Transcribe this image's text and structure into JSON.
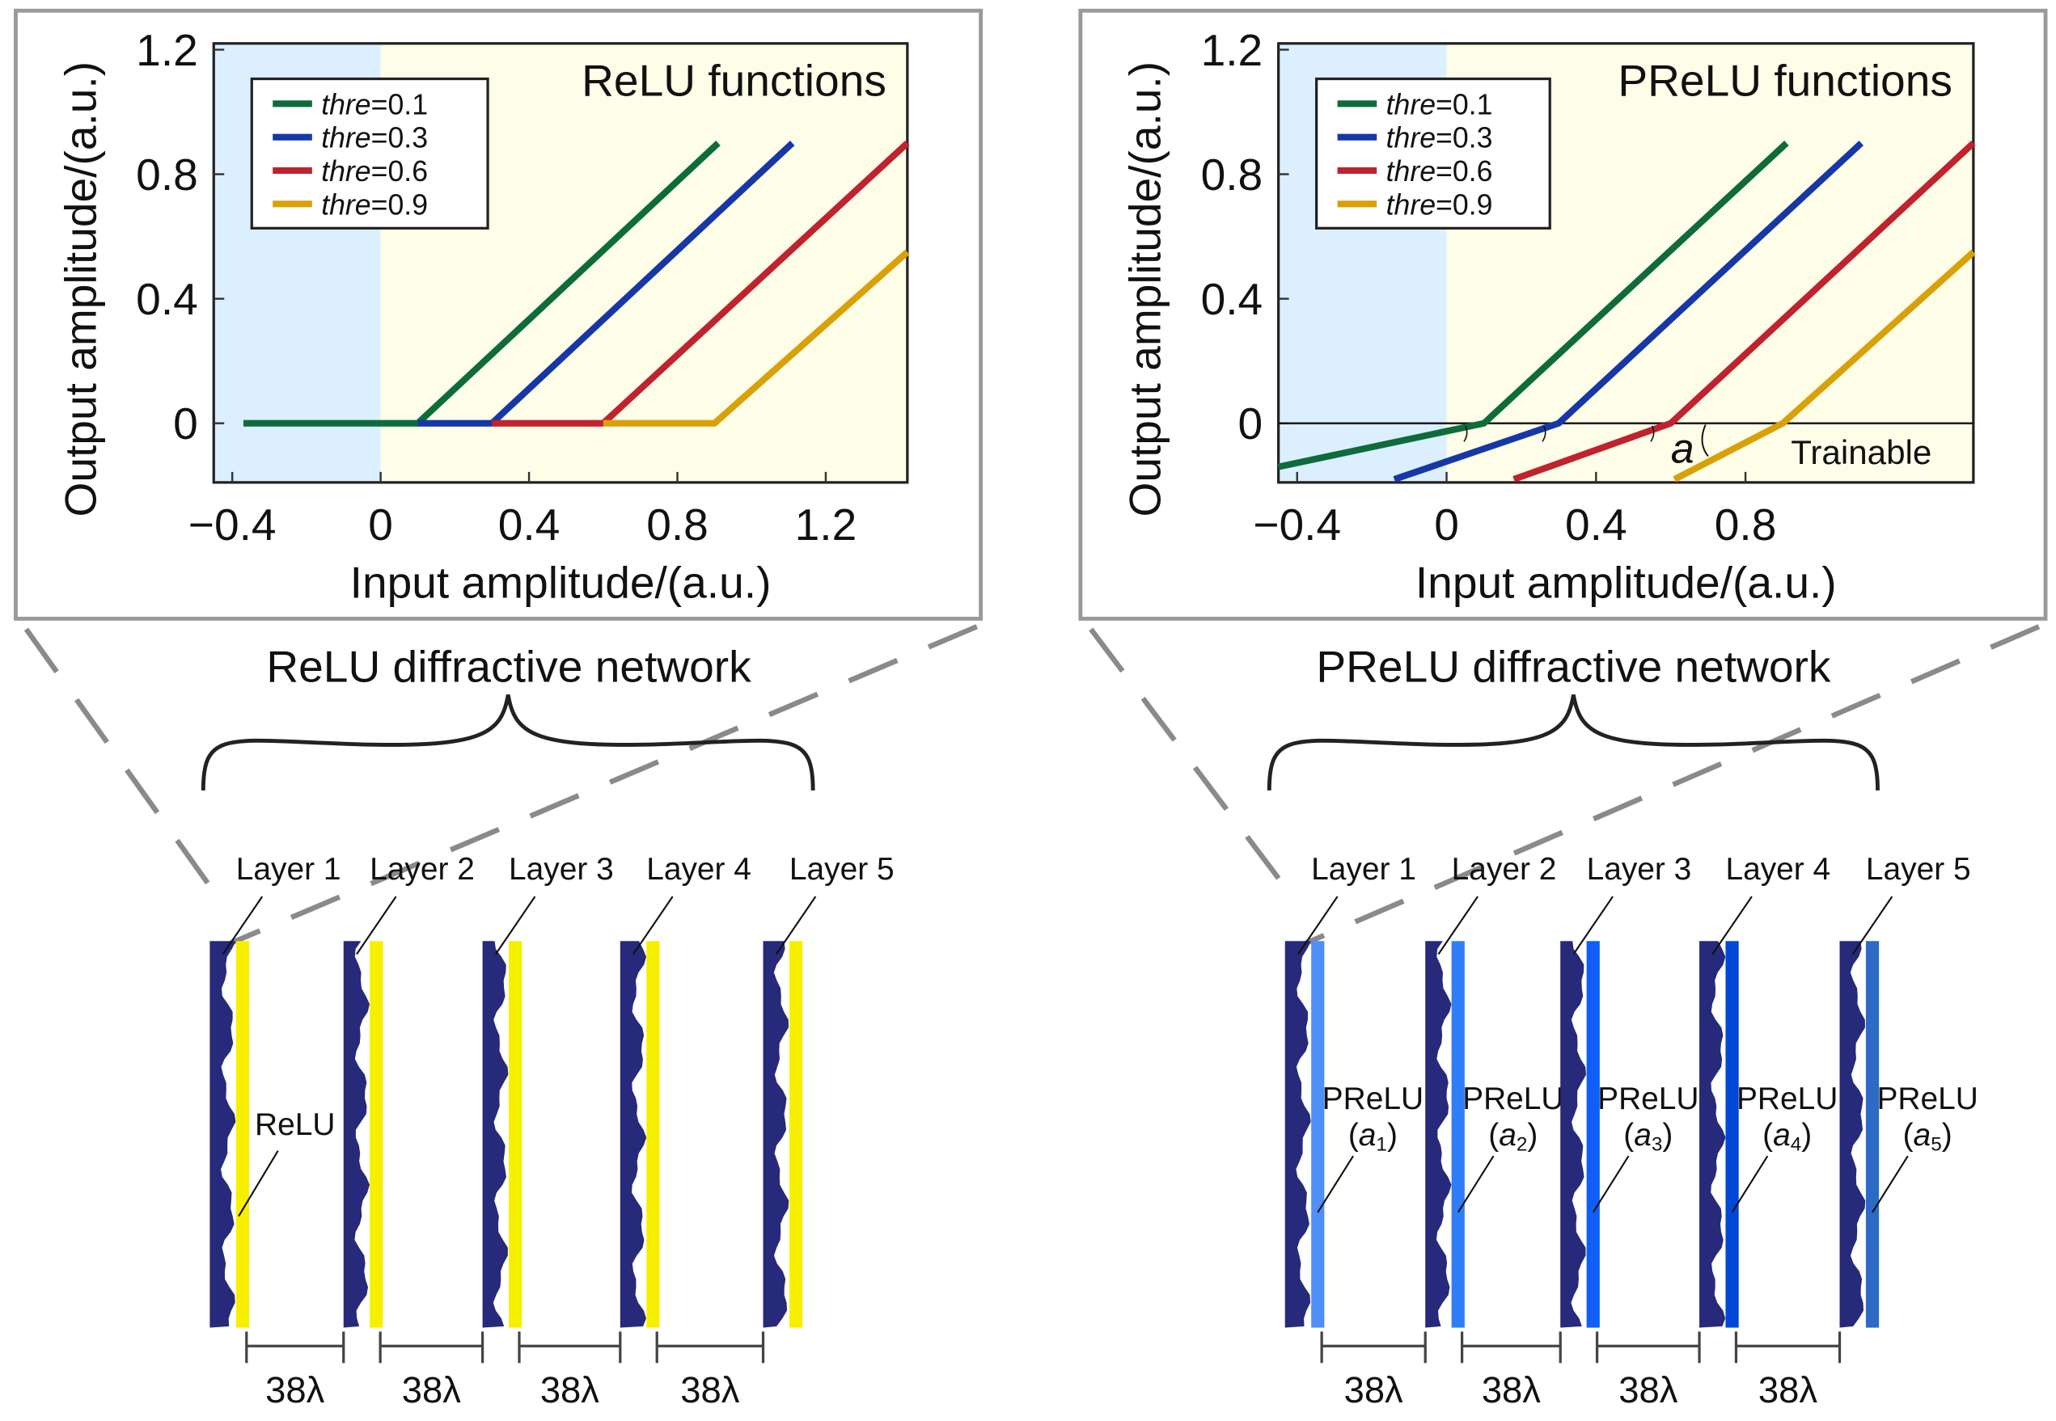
{
  "chart_data": [
    {
      "type": "line",
      "title": "ReLU functions",
      "xlabel": "Input amplitude/(a.u.)",
      "ylabel": "Output amplitude/(a.u.)",
      "xlim": [
        -0.45,
        1.42
      ],
      "ylim": [
        -0.19,
        1.22
      ],
      "xticks": [
        -0.4,
        0,
        0.4,
        0.8,
        1.2
      ],
      "xtick_labels": [
        "−0.4",
        "0",
        "0.4",
        "0.8",
        "1.2"
      ],
      "yticks": [
        0,
        0.4,
        0.8,
        1.2
      ],
      "ytick_labels": [
        "0",
        "0.4",
        "0.8",
        "1.2"
      ],
      "legend_position": "top-left",
      "shaded_regions": [
        {
          "from": -0.45,
          "to": 0,
          "color": "#dcefff"
        },
        {
          "from": 0,
          "to": 1.42,
          "color": "#fdfde8"
        }
      ],
      "series": [
        {
          "name": "thre=0.1",
          "prefix": "thre",
          "suffix": "=0.1",
          "color": "#0e6b3c",
          "x": [
            -0.37,
            0.1,
            0.91
          ],
          "y": [
            0,
            0,
            0.9
          ]
        },
        {
          "name": "thre=0.3",
          "prefix": "thre",
          "suffix": "=0.3",
          "color": "#1737a6",
          "x": [
            0.1,
            0.3,
            1.11
          ],
          "y": [
            0,
            0,
            0.9
          ]
        },
        {
          "name": "thre=0.6",
          "prefix": "thre",
          "suffix": "=0.6",
          "color": "#c0222e",
          "x": [
            0.3,
            0.6,
            1.42
          ],
          "y": [
            0,
            0,
            0.9
          ]
        },
        {
          "name": "thre=0.9",
          "prefix": "thre",
          "suffix": "=0.9",
          "color": "#d9a107",
          "x": [
            0.6,
            0.9,
            1.42
          ],
          "y": [
            0,
            0,
            0.55
          ]
        }
      ]
    },
    {
      "type": "line",
      "title": "PReLU functions",
      "xlabel": "Input amplitude/(a.u.)",
      "ylabel": "Output amplitude/(a.u.)",
      "xlim": [
        -0.45,
        1.41
      ],
      "ylim": [
        -0.19,
        1.22
      ],
      "xticks": [
        -0.4,
        0,
        0.4,
        0.8
      ],
      "xtick_labels": [
        "−0.4",
        "0",
        "0.4",
        "0.8"
      ],
      "yticks": [
        0,
        0.4,
        0.8,
        1.2
      ],
      "ytick_labels": [
        "0",
        "0.4",
        "0.8",
        "1.2"
      ],
      "legend_position": "top-left",
      "zero_line": true,
      "annotation": {
        "symbol": "a",
        "text": "Trainable"
      },
      "shaded_regions": [
        {
          "from": -0.45,
          "to": 0,
          "color": "#dcefff"
        },
        {
          "from": 0,
          "to": 1.41,
          "color": "#fdfde8"
        }
      ],
      "series": [
        {
          "name": "thre=0.1",
          "prefix": "thre",
          "suffix": "=0.1",
          "color": "#0e6b3c",
          "x": [
            -0.45,
            0.1,
            0.91
          ],
          "y": [
            -0.14,
            0,
            0.9
          ]
        },
        {
          "name": "thre=0.3",
          "prefix": "thre",
          "suffix": "=0.3",
          "color": "#1737a6",
          "x": [
            -0.14,
            0.3,
            1.11
          ],
          "y": [
            -0.18,
            0,
            0.9
          ]
        },
        {
          "name": "thre=0.6",
          "prefix": "thre",
          "suffix": "=0.6",
          "color": "#c0222e",
          "x": [
            0.18,
            0.6,
            1.41
          ],
          "y": [
            -0.18,
            0,
            0.9
          ]
        },
        {
          "name": "thre=0.9",
          "prefix": "thre",
          "suffix": "=0.9",
          "color": "#d9a107",
          "x": [
            0.61,
            0.9,
            1.41
          ],
          "y": [
            -0.18,
            0,
            0.55
          ]
        }
      ]
    }
  ],
  "networks": [
    {
      "title": "ReLU diffractive network",
      "layers": [
        "Layer 1",
        "Layer 2",
        "Layer 3",
        "Layer 4",
        "Layer 5"
      ],
      "activation_label": "ReLU",
      "activation_colors": [
        "#f7ef00",
        "#f7ef00",
        "#f7ef00",
        "#f7ef00",
        "#f7ef00"
      ],
      "spacings": [
        "38λ",
        "38λ",
        "38λ",
        "38λ"
      ]
    },
    {
      "title": "PReLU diffractive network",
      "layers": [
        "Layer 1",
        "Layer 2",
        "Layer 3",
        "Layer 4",
        "Layer 5"
      ],
      "activation_labels": [
        "PReLU",
        "PReLU",
        "PReLU",
        "PReLU",
        "PReLU"
      ],
      "activation_params": [
        "a",
        "a",
        "a",
        "a",
        "a"
      ],
      "activation_subscripts": [
        "1",
        "2",
        "3",
        "4",
        "5"
      ],
      "activation_colors": [
        "#4f8ff7",
        "#2f7ef7",
        "#0f5ff7",
        "#0048d6",
        "#2d6ac6"
      ],
      "spacings": [
        "38λ",
        "38λ",
        "38λ",
        "38λ"
      ]
    }
  ],
  "colors": {
    "plate": "#27297a",
    "frame": "#9a9a9a",
    "dash": "#8a8a8a"
  }
}
